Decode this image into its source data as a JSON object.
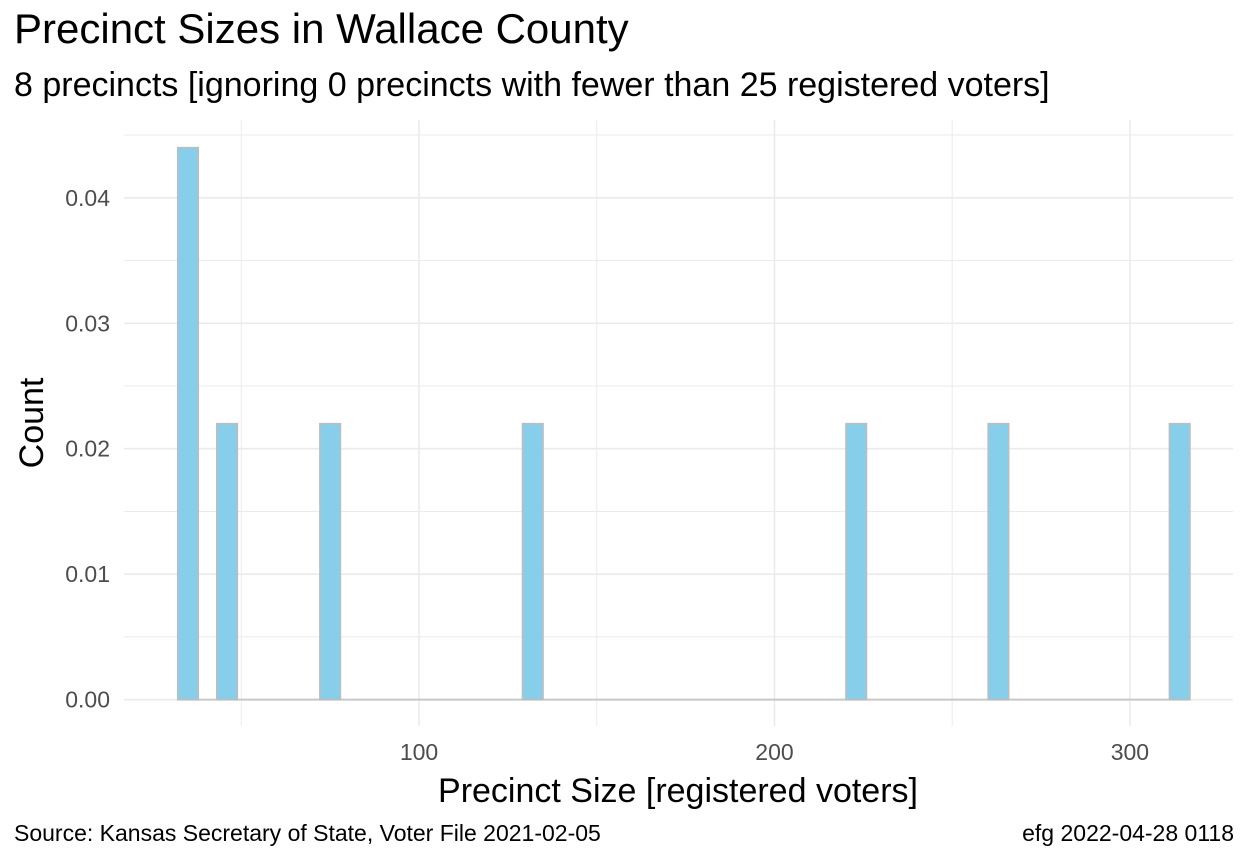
{
  "title": "Precinct Sizes in Wallace County",
  "subtitle": "8 precincts [ignoring 0 precincts with fewer than 25 registered voters]",
  "caption_left": "Source:  Kansas Secretary of State, Voter File  2021-02-05",
  "caption_right": "efg 2022-04-28 0118",
  "colors": {
    "bar_fill": "#87ceeb",
    "bar_stroke": "#bdbdbd",
    "grid": "#ebebeb",
    "baseline": "#c8c8c8"
  },
  "chart_data": {
    "type": "bar",
    "xlabel": "Precinct Size [registered voters]",
    "ylabel": "Count",
    "xlim": [
      17,
      329
    ],
    "ylim": [
      -0.0021,
      0.0462
    ],
    "x_ticks": [
      100,
      200,
      300
    ],
    "x_tick_labels": [
      "100",
      "200",
      "300"
    ],
    "y_ticks": [
      0,
      0.01,
      0.02,
      0.03,
      0.04
    ],
    "y_tick_labels": [
      "0.00",
      "0.01",
      "0.02",
      "0.03",
      "0.04"
    ],
    "bin_width": 5.8,
    "grid": true,
    "bars": [
      {
        "x": 35,
        "value": 0.044
      },
      {
        "x": 46,
        "value": 0.022
      },
      {
        "x": 75,
        "value": 0.022
      },
      {
        "x": 132,
        "value": 0.022
      },
      {
        "x": 223,
        "value": 0.022
      },
      {
        "x": 263,
        "value": 0.022
      },
      {
        "x": 314,
        "value": 0.022
      }
    ]
  }
}
